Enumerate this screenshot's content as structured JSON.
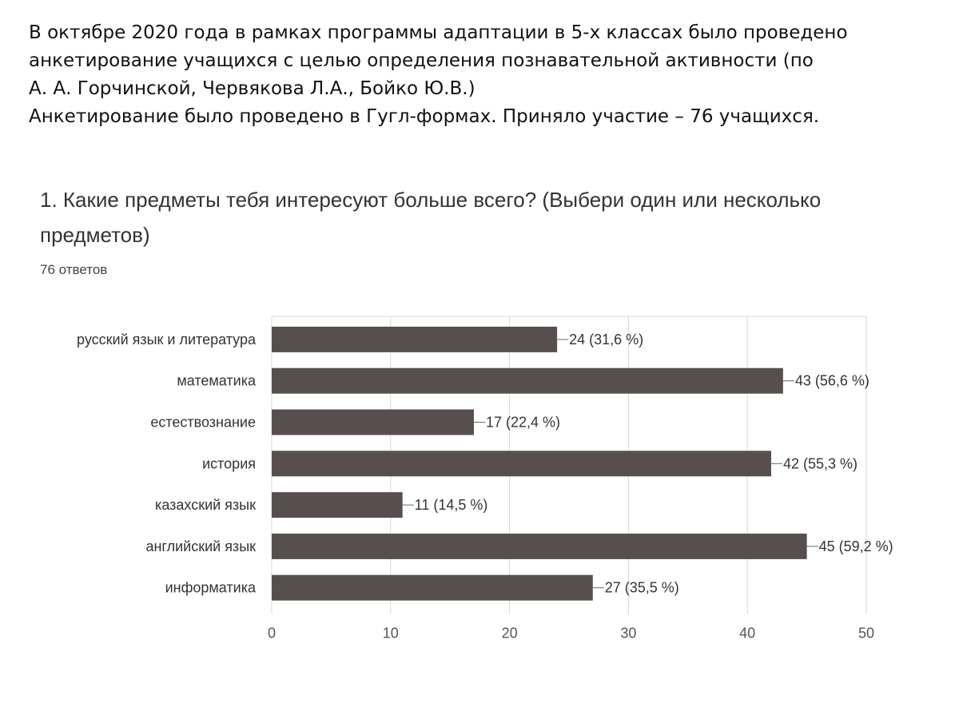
{
  "intro": {
    "lines": [
      "В октябре 2020 года в рамках программы адаптации в 5-х классах было проведено",
      "анкетирование учащихся  с целью определения познавательной активности (по",
      "А. А. Горчинской, Червякова Л.А., Бойко Ю.В.)",
      "Анкетирование было проведено в Гугл-формах. Приняло участие – 76 учащихся."
    ]
  },
  "question": {
    "title": "1. Какие предметы тебя интересуют больше всего? (Выбери один или несколько предметов)",
    "responses": "76 ответов"
  },
  "chart_data": {
    "type": "bar",
    "orientation": "horizontal",
    "categories": [
      "русский язык и литература",
      "математика",
      "естествознание",
      "история",
      "казахский язык",
      "английский язык",
      "информатика"
    ],
    "values": [
      24,
      43,
      17,
      42,
      11,
      45,
      27
    ],
    "data_labels": [
      "24 (31,6 %)",
      "43 (56,6 %)",
      "17 (22,4 %)",
      "42 (55,3 %)",
      "11 (14,5 %)",
      "45 (59,2 %)",
      "27 (35,5 %)"
    ],
    "xlim": [
      0,
      50
    ],
    "xticks": [
      0,
      10,
      20,
      30,
      40,
      50
    ],
    "grid": true,
    "bar_color": "#574e4e",
    "grid_color": "#d9d9d9"
  }
}
